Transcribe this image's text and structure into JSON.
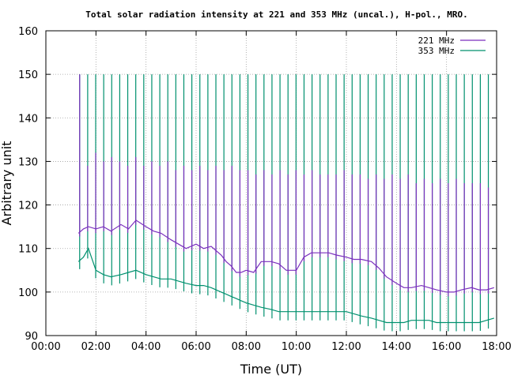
{
  "chart_data": {
    "type": "line",
    "title": "Total solar radiation intensity at 221 and 353 MHz (uncal.), H-pol., MRO.",
    "xlabel": "Time (UT)",
    "ylabel": "Arbitrary unit",
    "xlim": [
      0,
      18
    ],
    "ylim": [
      90,
      160
    ],
    "x_ticks": [
      0,
      2,
      4,
      6,
      8,
      10,
      12,
      14,
      16,
      18
    ],
    "x_tick_labels": [
      "00:00",
      "02:00",
      "04:00",
      "06:00",
      "08:00",
      "10:00",
      "12:00",
      "14:00",
      "16:00",
      "18:00"
    ],
    "y_ticks": [
      90,
      100,
      110,
      120,
      130,
      140,
      150,
      160
    ],
    "y_tick_labels": [
      "90",
      "100",
      "110",
      "120",
      "130",
      "140",
      "150",
      "160"
    ],
    "grid": true,
    "legend_position": "top-right",
    "series": [
      {
        "name": "221 MHz",
        "color": "#7b2fbe",
        "spike_top_values": [
          150,
          129,
          132,
          130,
          131,
          130,
          129,
          131,
          129,
          130,
          129,
          130,
          128,
          129,
          128,
          129,
          128,
          129,
          128,
          129,
          128,
          128,
          127,
          128,
          127,
          128,
          127,
          128,
          127,
          128,
          127,
          127,
          127,
          128,
          127,
          127,
          126,
          127,
          126,
          127,
          126,
          127,
          125,
          126,
          125,
          126,
          125,
          126,
          125,
          125,
          125,
          124
        ],
        "x": [
          1.3,
          1.5,
          1.7,
          2.0,
          2.3,
          2.6,
          3.0,
          3.3,
          3.6,
          4.0,
          4.3,
          4.6,
          5.0,
          5.3,
          5.6,
          6.0,
          6.3,
          6.6,
          7.0,
          7.2,
          7.4,
          7.6,
          7.8,
          8.0,
          8.3,
          8.6,
          9.0,
          9.3,
          9.6,
          10.0,
          10.3,
          10.6,
          11.0,
          11.3,
          11.6,
          12.0,
          12.3,
          12.6,
          13.0,
          13.3,
          13.6,
          14.0,
          14.3,
          14.6,
          15.0,
          15.3,
          15.6,
          16.0,
          16.3,
          16.6,
          17.0,
          17.3,
          17.6,
          17.9
        ],
        "y": [
          113.5,
          114.5,
          115,
          114.5,
          115,
          114,
          115.5,
          114.5,
          116.5,
          115,
          114,
          113.5,
          112,
          111,
          110,
          111,
          110,
          110.5,
          108.5,
          107,
          106,
          104.5,
          104.5,
          105,
          104.5,
          107,
          107,
          106.5,
          105,
          105,
          108,
          109,
          109,
          109,
          108.5,
          108,
          107.5,
          107.5,
          107,
          105.5,
          103.5,
          102,
          101,
          101,
          101.5,
          101,
          100.5,
          100,
          100,
          100.5,
          101,
          100.5,
          100.5,
          101
        ]
      },
      {
        "name": "353 MHz",
        "color": "#00906e",
        "spike_top_values": [
          150,
          150,
          150,
          150,
          150,
          150,
          150,
          150,
          150,
          150,
          150,
          150,
          150,
          150,
          150,
          150,
          150,
          150,
          150,
          150,
          150,
          150,
          150,
          150,
          150,
          150,
          150,
          150,
          150,
          150,
          150,
          150,
          150,
          150,
          150,
          150,
          150,
          150,
          150,
          150,
          150,
          150,
          150,
          150,
          150,
          150,
          150,
          150,
          150,
          150,
          150,
          150
        ],
        "x": [
          1.3,
          1.5,
          1.7,
          2.0,
          2.3,
          2.6,
          3.0,
          3.3,
          3.6,
          4.0,
          4.3,
          4.6,
          5.0,
          5.3,
          5.6,
          6.0,
          6.3,
          6.6,
          7.0,
          7.2,
          7.4,
          7.6,
          7.8,
          8.0,
          8.3,
          8.6,
          9.0,
          9.3,
          9.6,
          10.0,
          10.3,
          10.6,
          11.0,
          11.3,
          11.6,
          12.0,
          12.3,
          12.6,
          13.0,
          13.3,
          13.6,
          14.0,
          14.3,
          14.6,
          15.0,
          15.3,
          15.6,
          16.0,
          16.3,
          16.6,
          17.0,
          17.3,
          17.6,
          17.9
        ],
        "y": [
          107,
          108,
          110,
          105,
          104,
          103.5,
          104,
          104.5,
          105,
          104,
          103.5,
          103,
          103,
          102.5,
          102,
          101.5,
          101.5,
          101,
          100,
          99.5,
          99,
          98.5,
          98,
          97.5,
          97,
          96.5,
          96,
          95.5,
          95.5,
          95.5,
          95.5,
          95.5,
          95.5,
          95.5,
          95.5,
          95.5,
          95,
          94.5,
          94,
          93.5,
          93,
          93,
          93,
          93.5,
          93.5,
          93.5,
          93,
          93,
          93,
          93,
          93,
          93,
          93.5,
          94
        ]
      }
    ]
  }
}
